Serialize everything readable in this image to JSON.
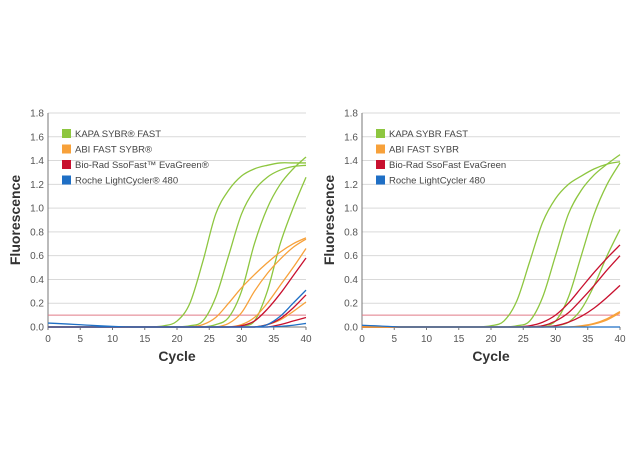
{
  "colors": {
    "KAPA": "#8dc63f",
    "ABI": "#f7a13a",
    "BioRad": "#c8102e",
    "Roche": "#1f6fc5",
    "threshold": "#e07a86",
    "grid": "#d9d9d9",
    "axis": "#777777"
  },
  "chart_data": [
    {
      "type": "line",
      "xlabel": "Cycle",
      "ylabel": "Fluorescence",
      "xlim": [
        0,
        40
      ],
      "ylim": [
        0,
        1.8
      ],
      "xticks": [
        "0",
        "5",
        "10",
        "15",
        "20",
        "25",
        "30",
        "35",
        "40"
      ],
      "yticks": [
        "0.0",
        "0.2",
        "0.4",
        "0.6",
        "0.8",
        "1.0",
        "1.2",
        "1.4",
        "1.6",
        "1.8"
      ],
      "grid": "horizontal",
      "legend_placement": "top-left",
      "threshold": 0.1,
      "legend": [
        {
          "label": "KAPA SYBR® FAST",
          "color_key": "KAPA"
        },
        {
          "label": "ABI FAST SYBR®",
          "color_key": "ABI"
        },
        {
          "label": "Bio-Rad SsoFast™ EvaGreen®",
          "color_key": "BioRad"
        },
        {
          "label": "Roche LightCycler® 480",
          "color_key": "Roche"
        }
      ],
      "x": [
        0,
        2,
        4,
        6,
        8,
        10,
        12,
        14,
        16,
        18,
        20,
        22,
        24,
        26,
        28,
        30,
        32,
        34,
        36,
        38,
        40
      ],
      "series": [
        {
          "group": "KAPA",
          "values": [
            0,
            0,
            0,
            0,
            0,
            0,
            0,
            0,
            0,
            0.01,
            0.05,
            0.2,
            0.55,
            0.95,
            1.15,
            1.27,
            1.33,
            1.36,
            1.38,
            1.38,
            1.38
          ]
        },
        {
          "group": "KAPA",
          "values": [
            0,
            0,
            0,
            0,
            0,
            0,
            0,
            0,
            0,
            0,
            0,
            0.01,
            0.05,
            0.25,
            0.6,
            0.95,
            1.15,
            1.26,
            1.32,
            1.35,
            1.36
          ]
        },
        {
          "group": "KAPA",
          "values": [
            0,
            0,
            0,
            0,
            0,
            0,
            0,
            0,
            0,
            0,
            0,
            0,
            0,
            0.02,
            0.08,
            0.3,
            0.7,
            1.0,
            1.2,
            1.33,
            1.43
          ]
        },
        {
          "group": "KAPA",
          "values": [
            0,
            0,
            0,
            0,
            0,
            0,
            0,
            0,
            0,
            0,
            0,
            0,
            0,
            0,
            0,
            0.01,
            0.05,
            0.3,
            0.7,
            1.0,
            1.26
          ]
        },
        {
          "group": "ABI",
          "values": [
            0,
            0,
            0,
            0,
            0,
            0,
            0,
            0,
            0,
            0,
            0,
            0,
            0.02,
            0.08,
            0.2,
            0.33,
            0.44,
            0.54,
            0.63,
            0.7,
            0.75
          ]
        },
        {
          "group": "ABI",
          "values": [
            0,
            0,
            0,
            0,
            0,
            0,
            0,
            0,
            0,
            0,
            0,
            0,
            0,
            0,
            0.03,
            0.12,
            0.3,
            0.45,
            0.57,
            0.67,
            0.74
          ]
        },
        {
          "group": "ABI",
          "values": [
            0,
            0,
            0,
            0,
            0,
            0,
            0,
            0,
            0,
            0,
            0,
            0,
            0,
            0,
            0,
            0.02,
            0.08,
            0.2,
            0.35,
            0.5,
            0.66
          ]
        },
        {
          "group": "ABI",
          "values": [
            0,
            0,
            0,
            0,
            0,
            0,
            0,
            0,
            0,
            0,
            0,
            0,
            0,
            0,
            0,
            0,
            0,
            0.02,
            0.06,
            0.13,
            0.21
          ]
        },
        {
          "group": "BioRad",
          "values": [
            0,
            0,
            0,
            0,
            0,
            0,
            0,
            0,
            0,
            0,
            0,
            0,
            0,
            0,
            0,
            0.01,
            0.05,
            0.15,
            0.28,
            0.43,
            0.58
          ]
        },
        {
          "group": "BioRad",
          "values": [
            0,
            0,
            0,
            0,
            0,
            0,
            0,
            0,
            0,
            0,
            0,
            0,
            0,
            0,
            0,
            0,
            0,
            0.02,
            0.07,
            0.16,
            0.27
          ]
        },
        {
          "group": "BioRad",
          "values": [
            0,
            0,
            0,
            0,
            0,
            0,
            0,
            0,
            0,
            0,
            0,
            0,
            0,
            0,
            0,
            0,
            0,
            0,
            0.02,
            0.05,
            0.08
          ]
        },
        {
          "group": "Roche",
          "values": [
            0.033,
            0.028,
            0.022,
            0.016,
            0.01,
            0.005,
            0.001,
            0,
            0,
            0,
            0,
            0,
            0,
            0,
            0,
            0,
            0,
            0.02,
            0.09,
            0.2,
            0.31
          ]
        },
        {
          "group": "Roche",
          "values": [
            0,
            0,
            0,
            0,
            0,
            0,
            0,
            0,
            0,
            0,
            0,
            0,
            0,
            0,
            0,
            0,
            0,
            0,
            0.005,
            0.015,
            0.03
          ]
        }
      ]
    },
    {
      "type": "line",
      "xlabel": "Cycle",
      "ylabel": "Fluorescence",
      "xlim": [
        0,
        40
      ],
      "ylim": [
        0,
        1.8
      ],
      "xticks": [
        "0",
        "5",
        "10",
        "15",
        "20",
        "25",
        "30",
        "35",
        "40"
      ],
      "yticks": [
        "0.0",
        "0.2",
        "0.4",
        "0.6",
        "0.8",
        "1.0",
        "1.2",
        "1.4",
        "1.6",
        "1.8"
      ],
      "grid": "horizontal",
      "legend_placement": "top-left",
      "threshold": 0.1,
      "legend": [
        {
          "label": "KAPA SYBR FAST",
          "color_key": "KAPA"
        },
        {
          "label": "ABI FAST SYBR",
          "color_key": "ABI"
        },
        {
          "label": "Bio-Rad SsoFast EvaGreen",
          "color_key": "BioRad"
        },
        {
          "label": "Roche LightCycler 480",
          "color_key": "Roche"
        }
      ],
      "x": [
        0,
        2,
        4,
        6,
        8,
        10,
        12,
        14,
        16,
        18,
        20,
        22,
        24,
        26,
        28,
        30,
        32,
        34,
        36,
        38,
        40
      ],
      "series": [
        {
          "group": "KAPA",
          "values": [
            0,
            0,
            0,
            0,
            0,
            0,
            0,
            0,
            0,
            0,
            0.01,
            0.05,
            0.22,
            0.55,
            0.88,
            1.08,
            1.2,
            1.27,
            1.33,
            1.37,
            1.39
          ]
        },
        {
          "group": "KAPA",
          "values": [
            0,
            0,
            0,
            0,
            0,
            0,
            0,
            0,
            0,
            0,
            0,
            0,
            0.01,
            0.05,
            0.25,
            0.6,
            0.95,
            1.15,
            1.28,
            1.37,
            1.45
          ]
        },
        {
          "group": "KAPA",
          "values": [
            0,
            0,
            0,
            0,
            0,
            0,
            0,
            0,
            0,
            0,
            0,
            0,
            0,
            0,
            0.01,
            0.05,
            0.25,
            0.6,
            0.95,
            1.2,
            1.38
          ]
        },
        {
          "group": "KAPA",
          "values": [
            0,
            0,
            0,
            0,
            0,
            0,
            0,
            0,
            0,
            0,
            0,
            0,
            0,
            0,
            0,
            0.01,
            0.04,
            0.15,
            0.35,
            0.6,
            0.82
          ]
        },
        {
          "group": "BioRad",
          "values": [
            0,
            0,
            0,
            0,
            0,
            0,
            0,
            0,
            0,
            0,
            0,
            0,
            0,
            0.01,
            0.04,
            0.1,
            0.2,
            0.33,
            0.46,
            0.58,
            0.69
          ]
        },
        {
          "group": "BioRad",
          "values": [
            0,
            0,
            0,
            0,
            0,
            0,
            0,
            0,
            0,
            0,
            0,
            0,
            0,
            0,
            0.01,
            0.05,
            0.12,
            0.23,
            0.35,
            0.48,
            0.6
          ]
        },
        {
          "group": "BioRad",
          "values": [
            0,
            0,
            0,
            0,
            0,
            0,
            0,
            0,
            0,
            0,
            0,
            0,
            0,
            0,
            0,
            0.01,
            0.04,
            0.09,
            0.16,
            0.25,
            0.35
          ]
        },
        {
          "group": "ABI",
          "values": [
            0,
            0,
            0,
            0,
            0,
            0,
            0,
            0,
            0,
            0,
            0,
            0,
            0,
            0,
            0,
            0,
            0,
            0.01,
            0.03,
            0.07,
            0.13
          ]
        },
        {
          "group": "ABI",
          "values": [
            0,
            0,
            0,
            0,
            0,
            0,
            0,
            0,
            0,
            0,
            0,
            0,
            0,
            0,
            0,
            0,
            0,
            0.005,
            0.025,
            0.06,
            0.12
          ]
        },
        {
          "group": "Roche",
          "values": [
            0.015,
            0.01,
            0.005,
            0,
            0,
            0,
            0,
            0,
            0,
            0,
            0,
            0,
            0,
            0,
            0,
            0,
            0,
            0,
            0,
            0,
            0
          ]
        }
      ]
    }
  ]
}
